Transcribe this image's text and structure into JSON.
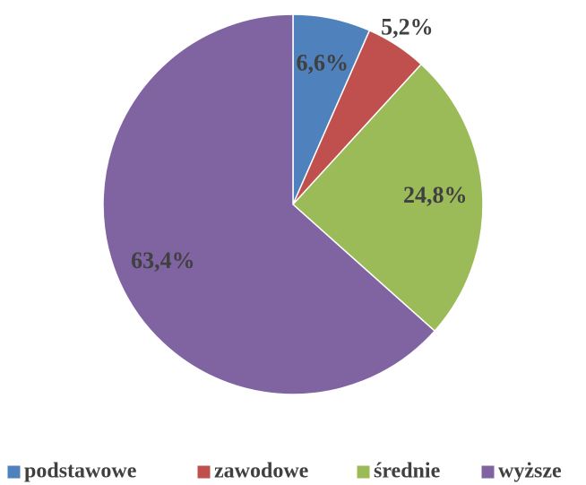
{
  "chart_data": {
    "type": "pie",
    "categories": [
      "podstawowe",
      "zawodowe",
      "średnie",
      "wyższe"
    ],
    "values": [
      6.6,
      5.2,
      24.8,
      63.4
    ],
    "value_labels": [
      "6,6%",
      "5,2%",
      "24,8%",
      "63,4%"
    ],
    "colors": [
      "#4f81bd",
      "#c0504d",
      "#9bbb59",
      "#8064a2"
    ],
    "legend": "bottom"
  }
}
